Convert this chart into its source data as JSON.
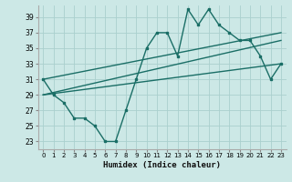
{
  "xlabel": "Humidex (Indice chaleur)",
  "bg_color": "#cce8e6",
  "grid_color": "#aad0ce",
  "line_color": "#1a6e66",
  "xlim": [
    -0.5,
    23.5
  ],
  "ylim": [
    22.0,
    40.5
  ],
  "xticks": [
    0,
    1,
    2,
    3,
    4,
    5,
    6,
    7,
    8,
    9,
    10,
    11,
    12,
    13,
    14,
    15,
    16,
    17,
    18,
    19,
    20,
    21,
    22,
    23
  ],
  "yticks": [
    23,
    25,
    27,
    29,
    31,
    33,
    35,
    37,
    39
  ],
  "jagged_x": [
    0,
    1,
    2,
    3,
    4,
    5,
    6,
    7,
    8,
    9,
    10,
    11,
    12,
    13,
    14,
    15,
    16,
    17,
    18,
    19,
    20,
    21,
    22,
    23
  ],
  "jagged_y": [
    31,
    29,
    28,
    26,
    26,
    25,
    23,
    23,
    27,
    31,
    35,
    37,
    37,
    34,
    40,
    38,
    40,
    38,
    37,
    36,
    36,
    34,
    31,
    33
  ],
  "trend1_x": [
    0,
    23
  ],
  "trend1_y": [
    31,
    37
  ],
  "trend2_x": [
    0,
    23
  ],
  "trend2_y": [
    29,
    36
  ],
  "trend3_x": [
    0,
    23
  ],
  "trend3_y": [
    29,
    33
  ]
}
